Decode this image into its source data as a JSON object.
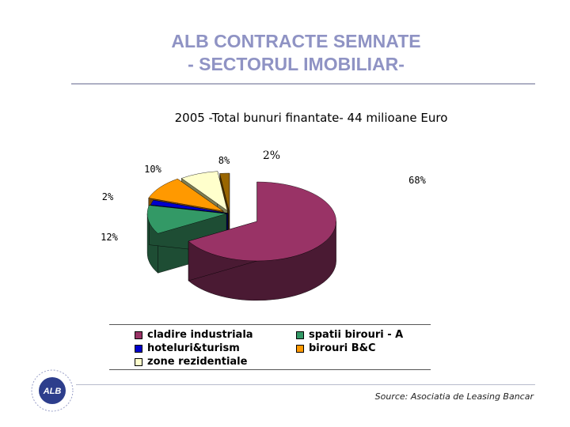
{
  "slide": {
    "title_line1": "ALB CONTRACTE SEMNATE",
    "title_line2": "- SECTORUL IMOBILIAR-",
    "source": "Source: Asociatia de Leasing Bancar",
    "logo_text": "ALB"
  },
  "chart_data": {
    "type": "pie",
    "title": "2005 -Total bunuri finantate- 44 milioane Euro",
    "exploded": true,
    "three_d": true,
    "legend_placement": "bottom",
    "series": [
      {
        "name": "cladire industriala",
        "value": 68,
        "label": "68%",
        "color": "#993366",
        "side_color": "#4a1a33"
      },
      {
        "name": "spatii birouri - A",
        "value": 12,
        "label": "12%",
        "color": "#339966",
        "side_color": "#1e4d34"
      },
      {
        "name": "hoteluri&turism",
        "value": 2,
        "label": "2%",
        "color": "#0000cc",
        "side_color": "#00004d"
      },
      {
        "name": "birouri B&C",
        "value": 10,
        "label": "10%",
        "color": "#ff9900",
        "side_color": "#7a4800"
      },
      {
        "name": "zone rezidentiale",
        "value": 8,
        "label": "8%",
        "color": "#ffffcc",
        "side_color": "#7d7d52"
      },
      {
        "name": "",
        "value": 2,
        "label": "2%",
        "color": "#996600",
        "side_color": "#4d3300"
      }
    ]
  },
  "legend": [
    {
      "label": "cladire industriala",
      "color": "#993366"
    },
    {
      "label": "spatii birouri - A",
      "color": "#339966"
    },
    {
      "label": "hoteluri&turism",
      "color": "#0000cc"
    },
    {
      "label": "birouri B&C",
      "color": "#ff9900"
    },
    {
      "label": "zone rezidentiale",
      "color": "#ffffcc"
    }
  ]
}
